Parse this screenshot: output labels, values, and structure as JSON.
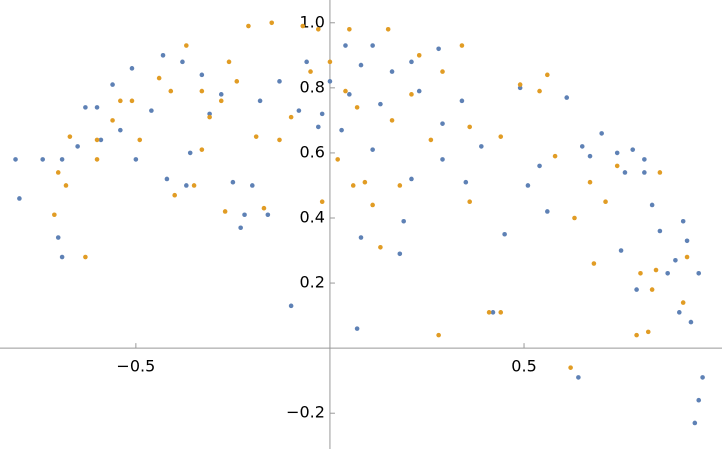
{
  "chart_data": {
    "type": "scatter",
    "xlim": [
      -0.85,
      1.01
    ],
    "ylim": [
      -0.31,
      1.07
    ],
    "xticks": [
      {
        "value": -0.5,
        "label": "−0.5"
      },
      0.5
    ],
    "yticks": [
      {
        "value": -0.2,
        "label": "−0.2"
      },
      0.2,
      0.4,
      0.6,
      0.8,
      {
        "value": 1,
        "label": "1.0"
      }
    ],
    "series": [
      {
        "color": "#5e81b5",
        "x": [
          -0.81,
          -0.8,
          -0.74,
          -0.7,
          -0.69,
          -0.69,
          -0.65,
          -0.63,
          -0.6,
          -0.56,
          -0.54,
          -0.51,
          -0.5,
          -0.43,
          -0.42,
          -0.37,
          -0.36,
          -0.31,
          -0.25,
          -0.23,
          -0.22,
          -0.2,
          -0.16,
          -0.1,
          -0.08,
          -0.06,
          -0.03,
          -0.02,
          0.0,
          0.04,
          0.07,
          0.08,
          0.08,
          0.11,
          0.13,
          0.18,
          0.19,
          0.21,
          0.28,
          0.29,
          0.34,
          0.42,
          0.45,
          0.49,
          0.51,
          0.54,
          0.56,
          0.61,
          0.64,
          0.65,
          0.67,
          0.75,
          0.76,
          0.79,
          0.81,
          0.83,
          0.85,
          0.87,
          0.89,
          0.91,
          0.92,
          0.93,
          0.94,
          0.95,
          0.95,
          0.96,
          0.9,
          0.7,
          0.74,
          0.78,
          0.81,
          0.39,
          0.35,
          0.29,
          0.23,
          0.21,
          0.16,
          0.11,
          0.05,
          0.03,
          -0.13,
          -0.18,
          -0.28,
          -0.33,
          -0.38,
          -0.46,
          -0.59
        ],
        "values": [
          0.58,
          0.46,
          0.58,
          0.34,
          0.28,
          0.58,
          0.62,
          0.74,
          0.74,
          0.81,
          0.67,
          0.86,
          0.58,
          0.9,
          0.52,
          0.5,
          0.6,
          0.72,
          0.51,
          0.37,
          0.41,
          0.5,
          0.41,
          0.13,
          0.73,
          0.88,
          0.68,
          0.72,
          0.82,
          0.93,
          0.06,
          0.87,
          0.34,
          0.61,
          0.75,
          0.29,
          0.39,
          0.52,
          0.92,
          0.69,
          0.76,
          0.11,
          0.35,
          0.8,
          0.5,
          0.56,
          0.42,
          0.77,
          -0.09,
          0.62,
          0.59,
          0.3,
          0.54,
          0.18,
          0.54,
          0.44,
          0.36,
          0.23,
          0.27,
          0.39,
          0.33,
          0.08,
          -0.23,
          -0.16,
          0.23,
          -0.09,
          0.11,
          0.66,
          0.6,
          0.61,
          0.58,
          0.62,
          0.51,
          0.58,
          0.79,
          0.88,
          0.85,
          0.93,
          0.78,
          0.67,
          0.82,
          0.76,
          0.78,
          0.84,
          0.88,
          0.73,
          0.64
        ]
      },
      {
        "color": "#e19c24",
        "x": [
          -0.71,
          -0.7,
          -0.68,
          -0.67,
          -0.63,
          -0.6,
          -0.54,
          -0.49,
          -0.44,
          -0.4,
          -0.35,
          -0.33,
          -0.31,
          -0.28,
          -0.24,
          -0.21,
          -0.17,
          -0.15,
          -0.1,
          -0.07,
          -0.03,
          -0.02,
          0.02,
          0.06,
          0.09,
          0.11,
          0.13,
          0.15,
          0.18,
          0.21,
          0.26,
          0.28,
          0.34,
          0.36,
          0.41,
          0.44,
          0.49,
          0.56,
          0.58,
          0.62,
          0.63,
          0.67,
          0.68,
          0.71,
          0.74,
          0.79,
          0.8,
          0.82,
          0.83,
          0.84,
          0.85,
          0.91,
          0.92,
          0.54,
          0.44,
          0.36,
          0.29,
          0.23,
          0.16,
          0.07,
          0.04,
          0.0,
          -0.05,
          -0.13,
          -0.19,
          -0.26,
          -0.33,
          -0.37,
          -0.41,
          -0.51,
          -0.56,
          -0.6,
          -0.27,
          0.05
        ],
        "values": [
          0.41,
          0.54,
          0.5,
          0.65,
          0.28,
          0.64,
          0.76,
          0.64,
          0.83,
          0.47,
          0.5,
          0.61,
          0.71,
          0.76,
          0.82,
          0.99,
          0.43,
          1.0,
          0.71,
          0.99,
          0.98,
          0.45,
          0.58,
          0.5,
          0.51,
          0.44,
          0.31,
          0.98,
          0.5,
          0.78,
          0.64,
          0.04,
          0.93,
          0.45,
          0.11,
          0.11,
          0.81,
          0.84,
          0.59,
          -0.06,
          0.4,
          0.51,
          0.26,
          0.45,
          0.56,
          0.04,
          0.23,
          0.05,
          0.18,
          0.24,
          0.54,
          0.14,
          0.28,
          0.79,
          0.65,
          0.68,
          0.85,
          0.9,
          0.7,
          0.74,
          0.79,
          0.88,
          0.85,
          0.64,
          0.65,
          0.88,
          0.79,
          0.93,
          0.79,
          0.76,
          0.7,
          0.58,
          0.42,
          0.98
        ]
      }
    ]
  }
}
